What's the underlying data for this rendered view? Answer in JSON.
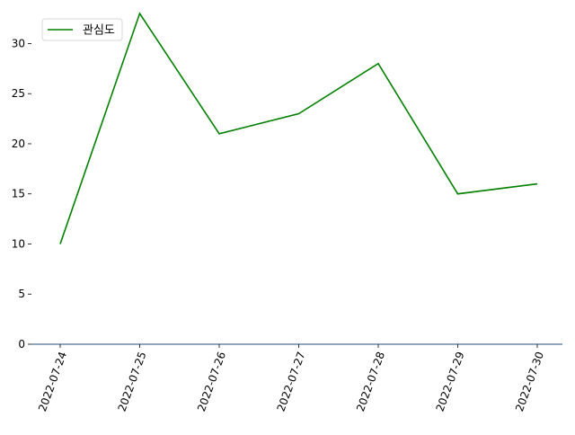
{
  "chart_data": {
    "type": "line",
    "title": "",
    "xlabel": "",
    "ylabel": "",
    "categories": [
      "2022-07-24",
      "2022-07-25",
      "2022-07-26",
      "2022-07-27",
      "2022-07-28",
      "2022-07-29",
      "2022-07-30"
    ],
    "series": [
      {
        "name": "관심도",
        "values": [
          10,
          33,
          21,
          23,
          28,
          15,
          16
        ],
        "color": "#008000"
      }
    ],
    "ylim": [
      0,
      33
    ],
    "yticks": [
      0,
      5,
      10,
      15,
      20,
      25,
      30
    ],
    "grid": false,
    "legend_position": "top-left",
    "axis_color": "#1f4e79"
  }
}
